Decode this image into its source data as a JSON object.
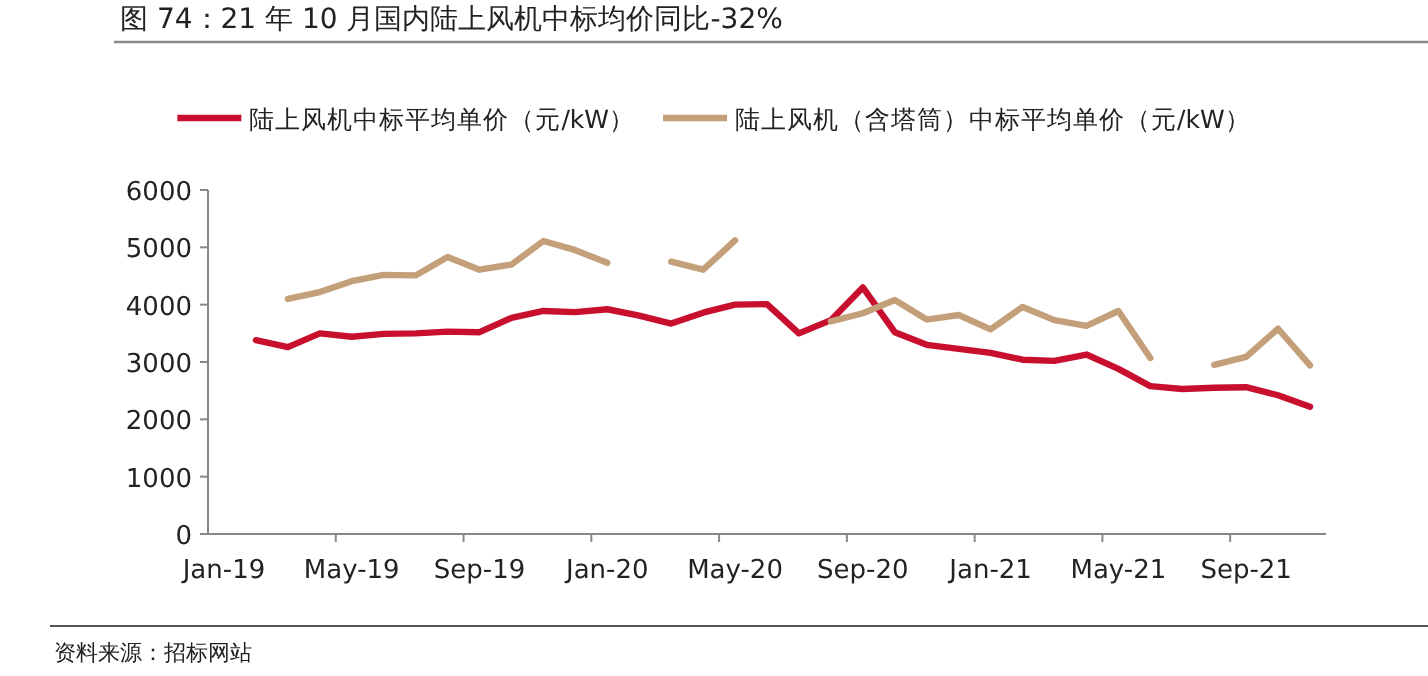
{
  "chart_data": {
    "type": "line",
    "title": "图 74：21 年 10 月国内陆上风机中标均价同比-32%",
    "categories": [
      "Jan-19",
      null,
      null,
      null,
      "May-19",
      null,
      null,
      null,
      "Sep-19",
      null,
      null,
      null,
      "Jan-20",
      null,
      null,
      null,
      "May-20",
      null,
      null,
      null,
      "Sep-20",
      null,
      null,
      null,
      "Jan-21",
      null,
      null,
      null,
      "May-21",
      null,
      null,
      null,
      "Sep-21",
      null,
      null
    ],
    "series": [
      {
        "name": "陆上风机中标平均单价（元/kW）",
        "color": "#c8102e",
        "values": [
          null,
          3380,
          3260,
          3500,
          3440,
          3490,
          3500,
          3530,
          3520,
          3770,
          3890,
          3870,
          3920,
          3810,
          3670,
          3860,
          4000,
          4010,
          3500,
          3730,
          4300,
          3520,
          3300,
          3230,
          3160,
          3040,
          3020,
          3130,
          2880,
          2580,
          2530,
          2550,
          2560,
          2420,
          2220
        ]
      },
      {
        "name": "陆上风机（含塔筒）中标平均单价（元/kW）",
        "color": "#c4a07a",
        "values": [
          null,
          null,
          4100,
          4220,
          4410,
          4520,
          4510,
          4830,
          4610,
          4700,
          5110,
          4950,
          4730,
          null,
          4750,
          4610,
          5120,
          null,
          null,
          3710,
          3850,
          4080,
          3740,
          3820,
          3570,
          3960,
          3730,
          3630,
          3890,
          3070,
          null,
          2950,
          3090,
          3580,
          2940
        ]
      }
    ],
    "ylim": [
      0,
      6000
    ],
    "yticks": [
      0,
      1000,
      2000,
      3000,
      4000,
      5000,
      6000
    ],
    "legend": "top",
    "grid": false,
    "marker": "none",
    "line_style": "solid",
    "annotations": [
      "资料来源：招标网站"
    ]
  }
}
